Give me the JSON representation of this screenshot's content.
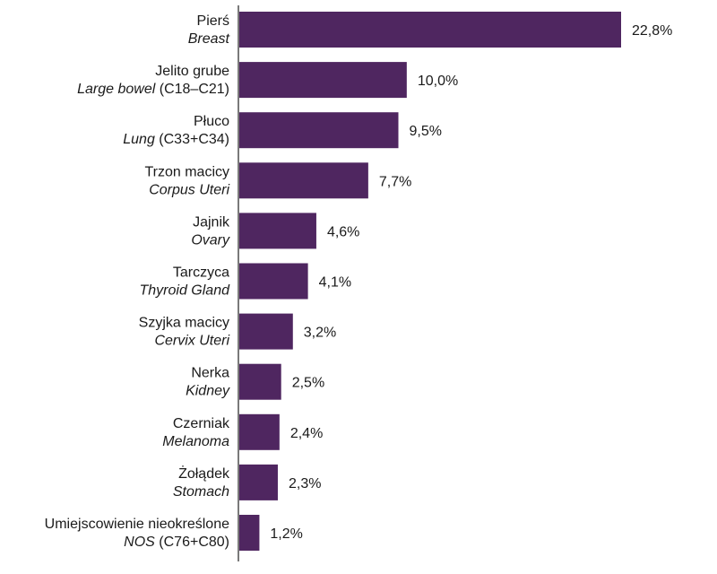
{
  "chart_data": {
    "type": "bar",
    "orientation": "horizontal",
    "title": "",
    "xlabel": "",
    "ylabel": "",
    "xlim": [
      0,
      23.5
    ],
    "grid": false,
    "legend": "none",
    "bar_color": "#4f2660",
    "categories": [
      {
        "pl": "Pierś",
        "en": "Breast",
        "code": ""
      },
      {
        "pl": "Jelito grube",
        "en": "Large bowel",
        "code": " (C18–C21)"
      },
      {
        "pl": "Płuco",
        "en": "Lung",
        "code": " (C33+C34)"
      },
      {
        "pl": "Trzon macicy",
        "en": "Corpus Uteri",
        "code": ""
      },
      {
        "pl": "Jajnik",
        "en": "Ovary",
        "code": ""
      },
      {
        "pl": "Tarczyca",
        "en": "Thyroid Gland",
        "code": ""
      },
      {
        "pl": "Szyjka macicy",
        "en": "Cervix Uteri",
        "code": ""
      },
      {
        "pl": "Nerka",
        "en": "Kidney",
        "code": ""
      },
      {
        "pl": "Czerniak",
        "en": "Melanoma",
        "code": ""
      },
      {
        "pl": "Żołądek",
        "en": "Stomach",
        "code": ""
      },
      {
        "pl": "Umiejscowienie nieokreślone",
        "en": "NOS",
        "code": " (C76+C80)"
      }
    ],
    "values": [
      22.8,
      10.0,
      9.5,
      7.7,
      4.6,
      4.1,
      3.2,
      2.5,
      2.4,
      2.3,
      1.2
    ],
    "value_labels": [
      "22,8%",
      "10,0%",
      "9,5%",
      "7,7%",
      "4,6%",
      "4,1%",
      "3,2%",
      "2,5%",
      "2,4%",
      "2,3%",
      "1,2%"
    ]
  }
}
